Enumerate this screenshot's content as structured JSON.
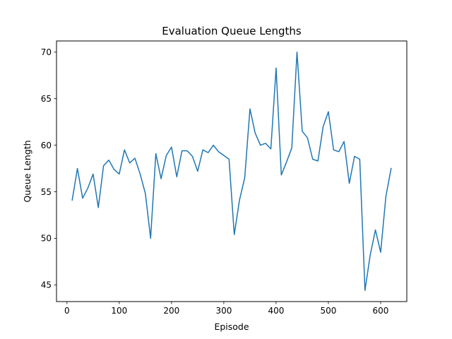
{
  "chart_data": {
    "type": "line",
    "title": "Evaluation Queue Lengths",
    "xlabel": "Episode",
    "ylabel": "Queue Length",
    "xlim": [
      -20,
      650
    ],
    "ylim": [
      43.2,
      71.2
    ],
    "xticks": [
      0,
      100,
      200,
      300,
      400,
      500,
      600
    ],
    "yticks": [
      45,
      50,
      55,
      60,
      65,
      70
    ],
    "grid": false,
    "legend": null,
    "series": [
      {
        "color": "#1f77b4",
        "x": [
          10,
          20,
          30,
          40,
          50,
          60,
          70,
          80,
          90,
          100,
          110,
          120,
          130,
          140,
          150,
          160,
          170,
          180,
          190,
          200,
          210,
          220,
          230,
          240,
          250,
          260,
          270,
          280,
          290,
          300,
          310,
          320,
          330,
          340,
          350,
          360,
          370,
          380,
          390,
          400,
          410,
          420,
          430,
          440,
          450,
          460,
          470,
          480,
          490,
          500,
          510,
          520,
          530,
          540,
          550,
          560,
          570,
          580,
          590,
          600,
          610,
          620
        ],
        "y": [
          54.1,
          57.5,
          54.3,
          55.4,
          56.9,
          53.3,
          57.8,
          58.4,
          57.4,
          56.9,
          59.5,
          58.1,
          58.6,
          56.9,
          54.8,
          50.0,
          59.1,
          56.4,
          58.9,
          59.8,
          56.6,
          59.4,
          59.4,
          58.8,
          57.2,
          59.5,
          59.2,
          60.0,
          59.3,
          58.9,
          58.5,
          50.4,
          54.1,
          56.5,
          63.9,
          61.3,
          60.0,
          60.2,
          59.6,
          68.3,
          56.8,
          58.2,
          59.7,
          70.0,
          61.5,
          60.8,
          58.5,
          58.3,
          62.0,
          63.6,
          59.5,
          59.3,
          60.4,
          55.9,
          58.8,
          58.5,
          44.4,
          48.2,
          50.9,
          48.5,
          54.5,
          57.5
        ]
      }
    ]
  }
}
